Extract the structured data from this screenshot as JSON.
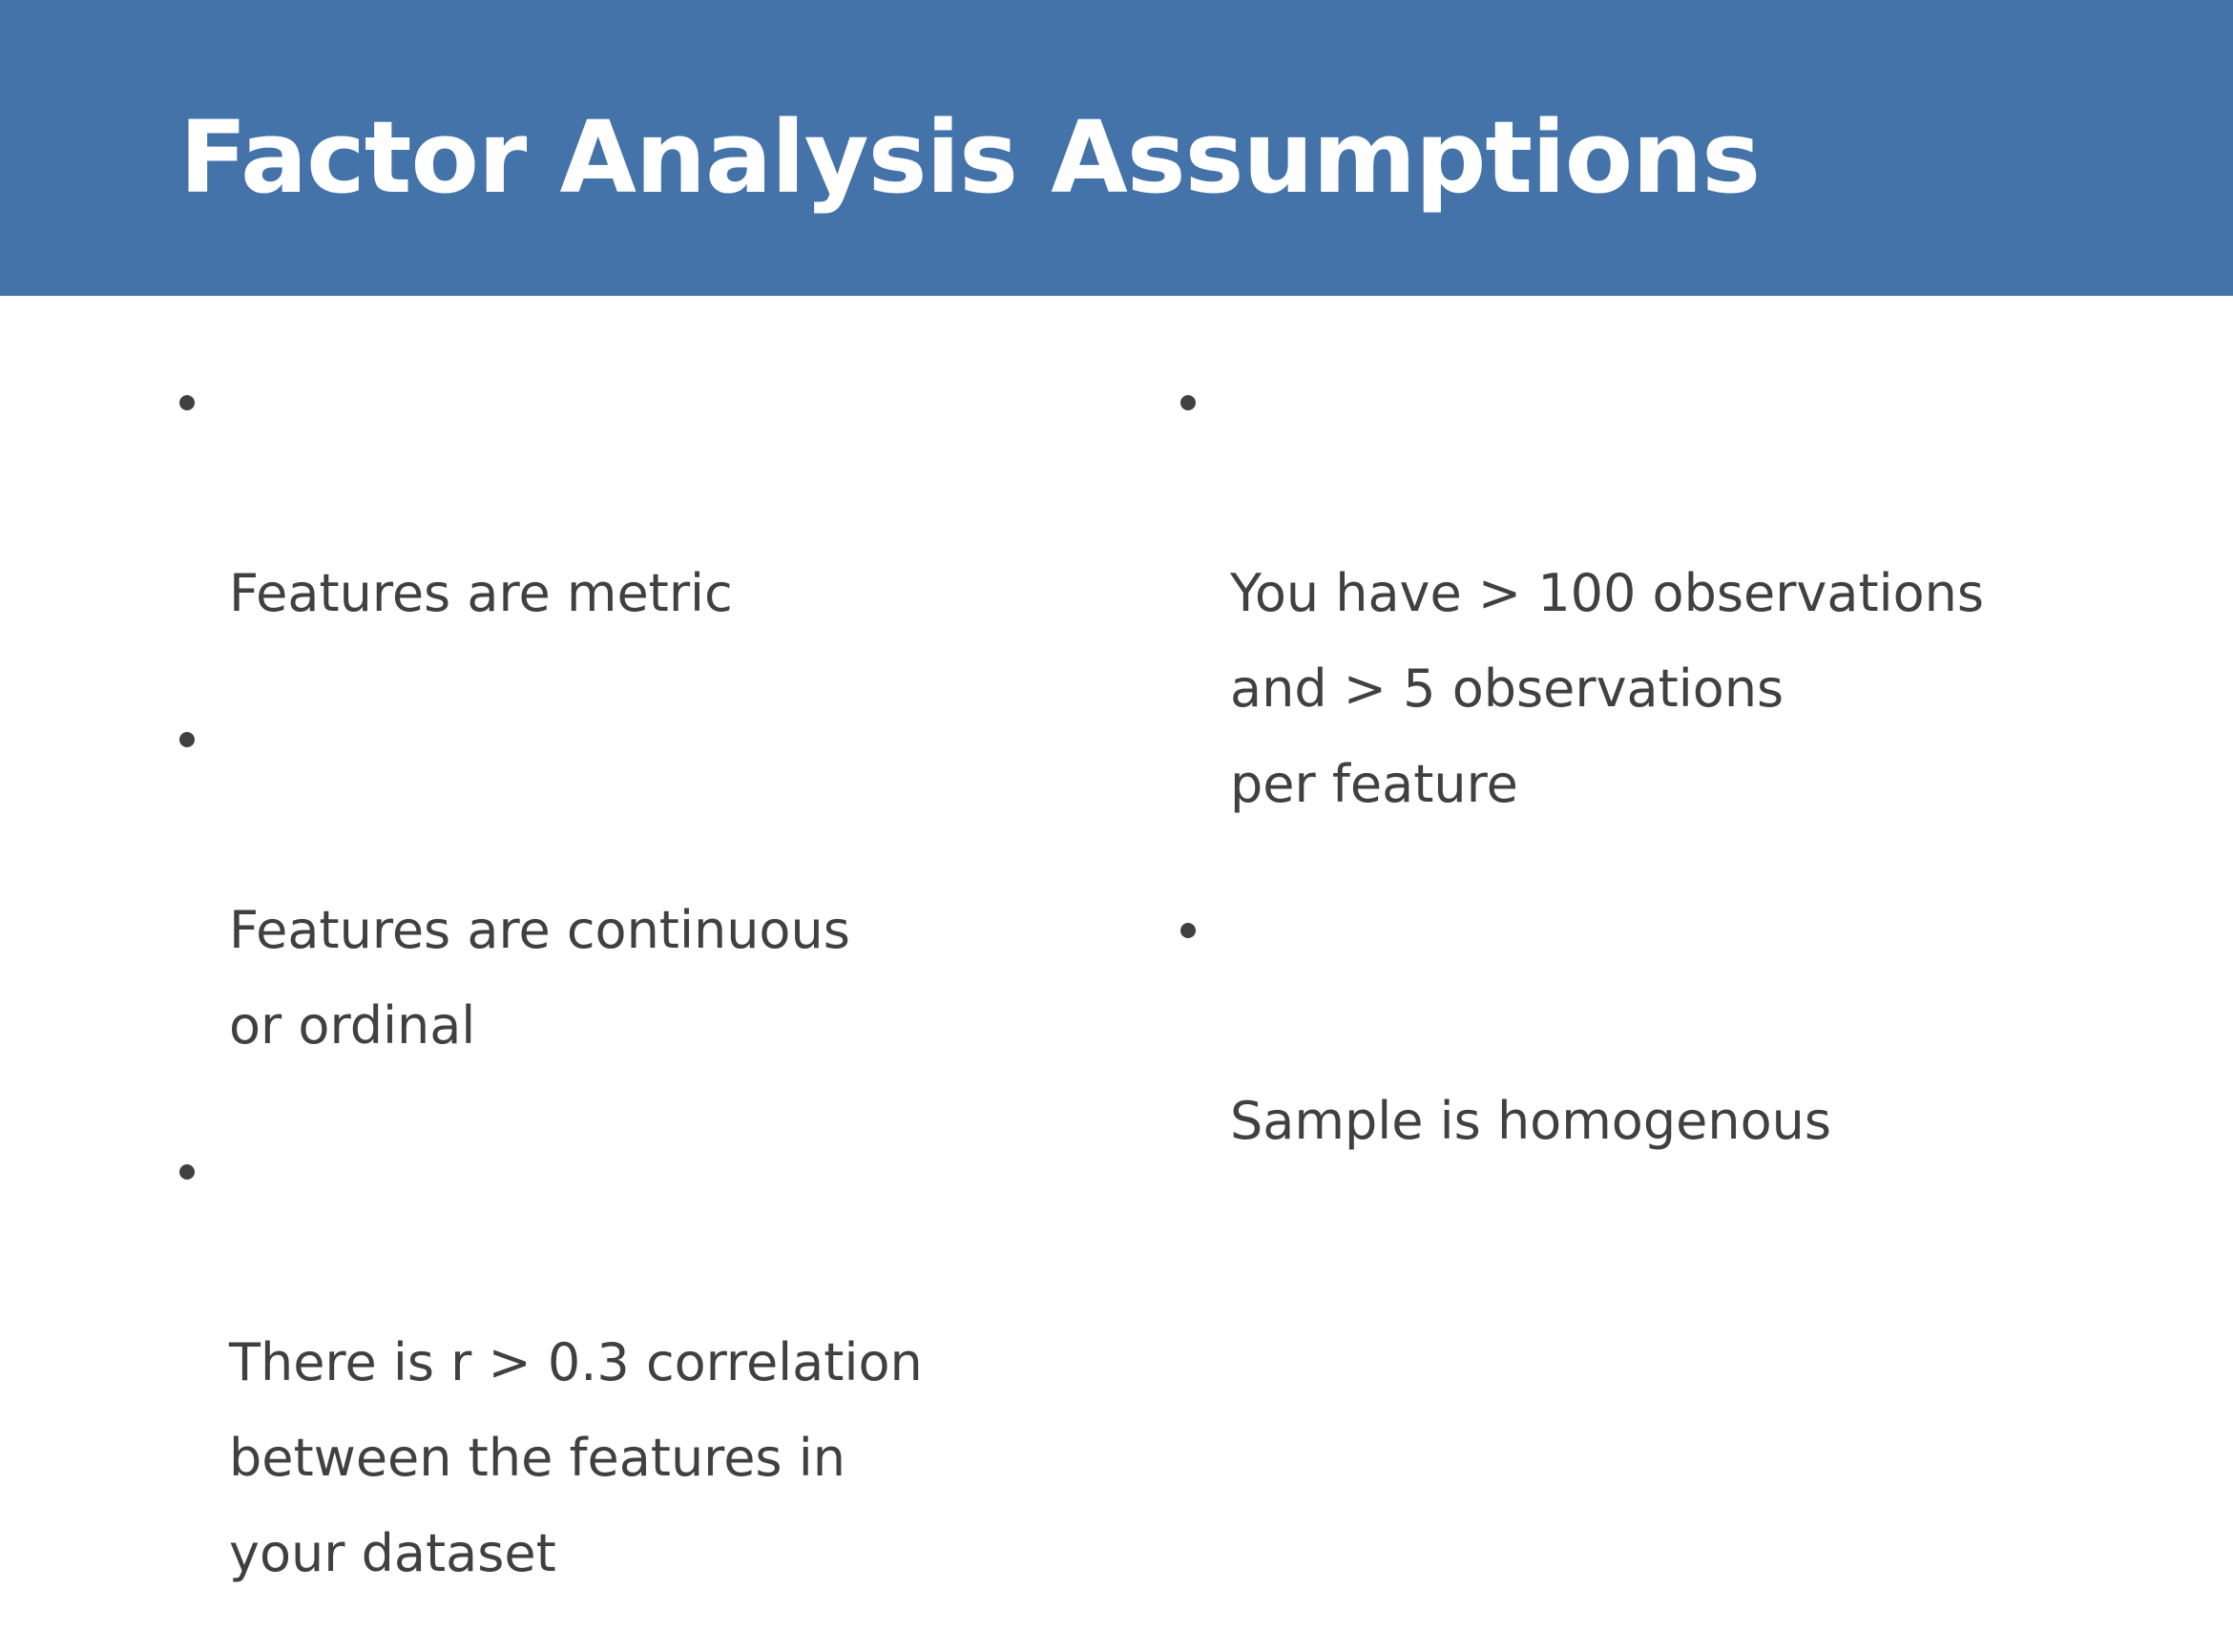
{
  "slide": {
    "title": "Factor Analysis Assumptions",
    "colors": {
      "header_background": "#4473aa",
      "title_text": "#ffffff",
      "body_text": "#404040",
      "page_background": "#ffffff"
    }
  },
  "left_column": {
    "items": [
      {
        "text": "Features are metric"
      },
      {
        "text": "Features are continuous\nor ordinal"
      },
      {
        "text": "There is r > 0.3 correlation\nbetween the features in\nyour dataset"
      }
    ]
  },
  "right_column": {
    "items": [
      {
        "text": "You have > 100 observations\nand > 5 observations\nper feature"
      },
      {
        "text": "Sample is homogenous"
      }
    ]
  }
}
